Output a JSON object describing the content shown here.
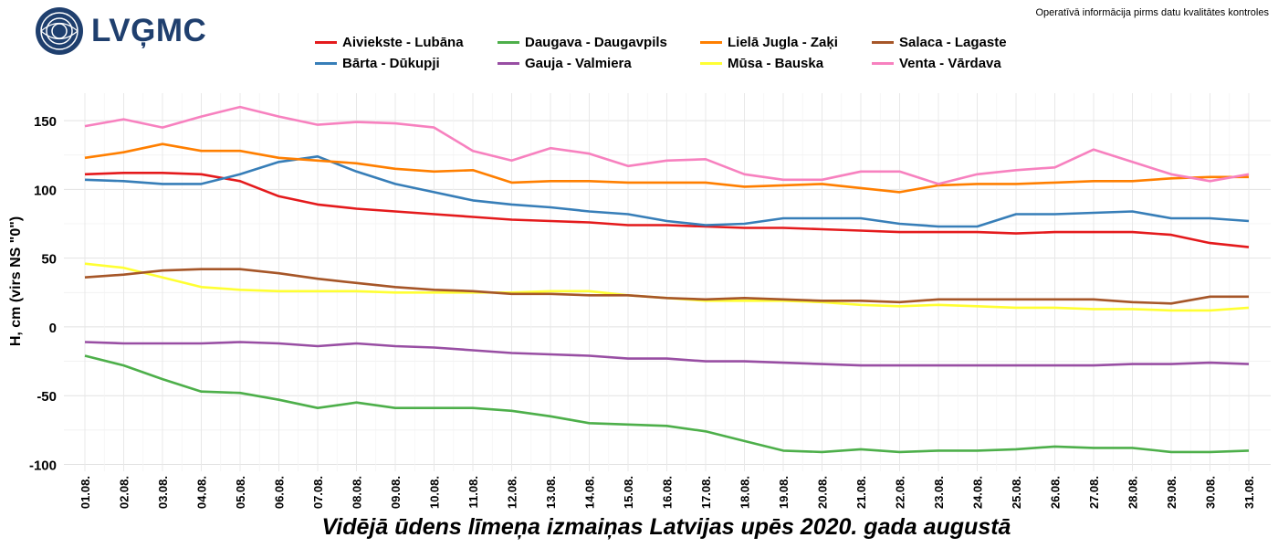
{
  "header": {
    "logo_text": "LVĢMC",
    "note": "Operatīvā informācija pirms datu kvalitātes kontroles"
  },
  "chart_data": {
    "type": "line",
    "title": "Vidējā ūdens līmeņa izmaiņas Latvijas upēs 2020. gada augustā",
    "xlabel": "",
    "ylabel": "H, cm (virs NS \"0\")",
    "ylim": [
      -105,
      170
    ],
    "yticks": [
      "150",
      "100",
      "50",
      "0",
      "-50",
      "-100"
    ],
    "ytick_values": [
      150,
      100,
      50,
      0,
      -50,
      -100
    ],
    "grid": true,
    "legend_position": "top",
    "categories": [
      "01.08.",
      "02.08.",
      "03.08.",
      "04.08.",
      "05.08.",
      "06.08.",
      "07.08.",
      "08.08.",
      "09.08.",
      "10.08.",
      "11.08.",
      "12.08.",
      "13.08.",
      "14.08.",
      "15.08.",
      "16.08.",
      "17.08.",
      "18.08.",
      "19.08.",
      "20.08.",
      "21.08.",
      "22.08.",
      "23.08.",
      "24.08.",
      "25.08.",
      "26.08.",
      "27.08.",
      "28.08.",
      "29.08.",
      "30.08.",
      "31.08."
    ],
    "series": [
      {
        "name": "Aiviekste - Lubāna",
        "color": "#e41a1c",
        "values": [
          111,
          112,
          112,
          111,
          106,
          95,
          89,
          86,
          84,
          82,
          80,
          78,
          77,
          76,
          74,
          74,
          73,
          72,
          72,
          71,
          70,
          69,
          69,
          69,
          68,
          69,
          69,
          69,
          67,
          61,
          58
        ]
      },
      {
        "name": "Bārta - Dūkupji",
        "color": "#377eb8",
        "values": [
          107,
          106,
          104,
          104,
          111,
          120,
          124,
          113,
          104,
          98,
          92,
          89,
          87,
          84,
          82,
          77,
          74,
          75,
          79,
          79,
          79,
          75,
          73,
          73,
          82,
          82,
          83,
          84,
          79,
          79,
          77
        ]
      },
      {
        "name": "Daugava - Daugavpils",
        "color": "#4daf4a",
        "values": [
          -21,
          -28,
          -38,
          -47,
          -48,
          -53,
          -59,
          -55,
          -59,
          -59,
          -59,
          -61,
          -65,
          -70,
          -71,
          -72,
          -76,
          -83,
          -90,
          -91,
          -89,
          -91,
          -90,
          -90,
          -89,
          -87,
          -88,
          -88,
          -91,
          -91,
          -90
        ]
      },
      {
        "name": "Gauja - Valmiera",
        "color": "#984ea3",
        "values": [
          -11,
          -12,
          -12,
          -12,
          -11,
          -12,
          -14,
          -12,
          -14,
          -15,
          -17,
          -19,
          -20,
          -21,
          -23,
          -23,
          -25,
          -25,
          -26,
          -27,
          -28,
          -28,
          -28,
          -28,
          -28,
          -28,
          -28,
          -27,
          -27,
          -26,
          -27
        ]
      },
      {
        "name": "Lielā Jugla - Zaķi",
        "color": "#ff7f00",
        "values": [
          123,
          127,
          133,
          128,
          128,
          123,
          121,
          119,
          115,
          113,
          114,
          105,
          106,
          106,
          105,
          105,
          105,
          102,
          103,
          104,
          101,
          98,
          103,
          104,
          104,
          105,
          106,
          106,
          108,
          109,
          109
        ]
      },
      {
        "name": "Mūsa - Bauska",
        "color": "#ffff33",
        "values": [
          46,
          43,
          36,
          29,
          27,
          26,
          26,
          26,
          25,
          25,
          25,
          25,
          26,
          26,
          23,
          21,
          19,
          19,
          19,
          18,
          16,
          15,
          16,
          15,
          14,
          14,
          13,
          13,
          12,
          12,
          14
        ]
      },
      {
        "name": "Salaca - Lagaste",
        "color": "#a65628",
        "values": [
          36,
          38,
          41,
          42,
          42,
          39,
          35,
          32,
          29,
          27,
          26,
          24,
          24,
          23,
          23,
          21,
          20,
          21,
          20,
          19,
          19,
          18,
          20,
          20,
          20,
          20,
          20,
          18,
          17,
          22,
          22
        ]
      },
      {
        "name": "Venta - Vārdava",
        "color": "#f781bf",
        "values": [
          146,
          151,
          145,
          153,
          160,
          153,
          147,
          149,
          148,
          145,
          128,
          121,
          130,
          126,
          117,
          121,
          122,
          111,
          107,
          107,
          113,
          113,
          104,
          111,
          114,
          116,
          129,
          120,
          111,
          106,
          111
        ]
      }
    ]
  }
}
